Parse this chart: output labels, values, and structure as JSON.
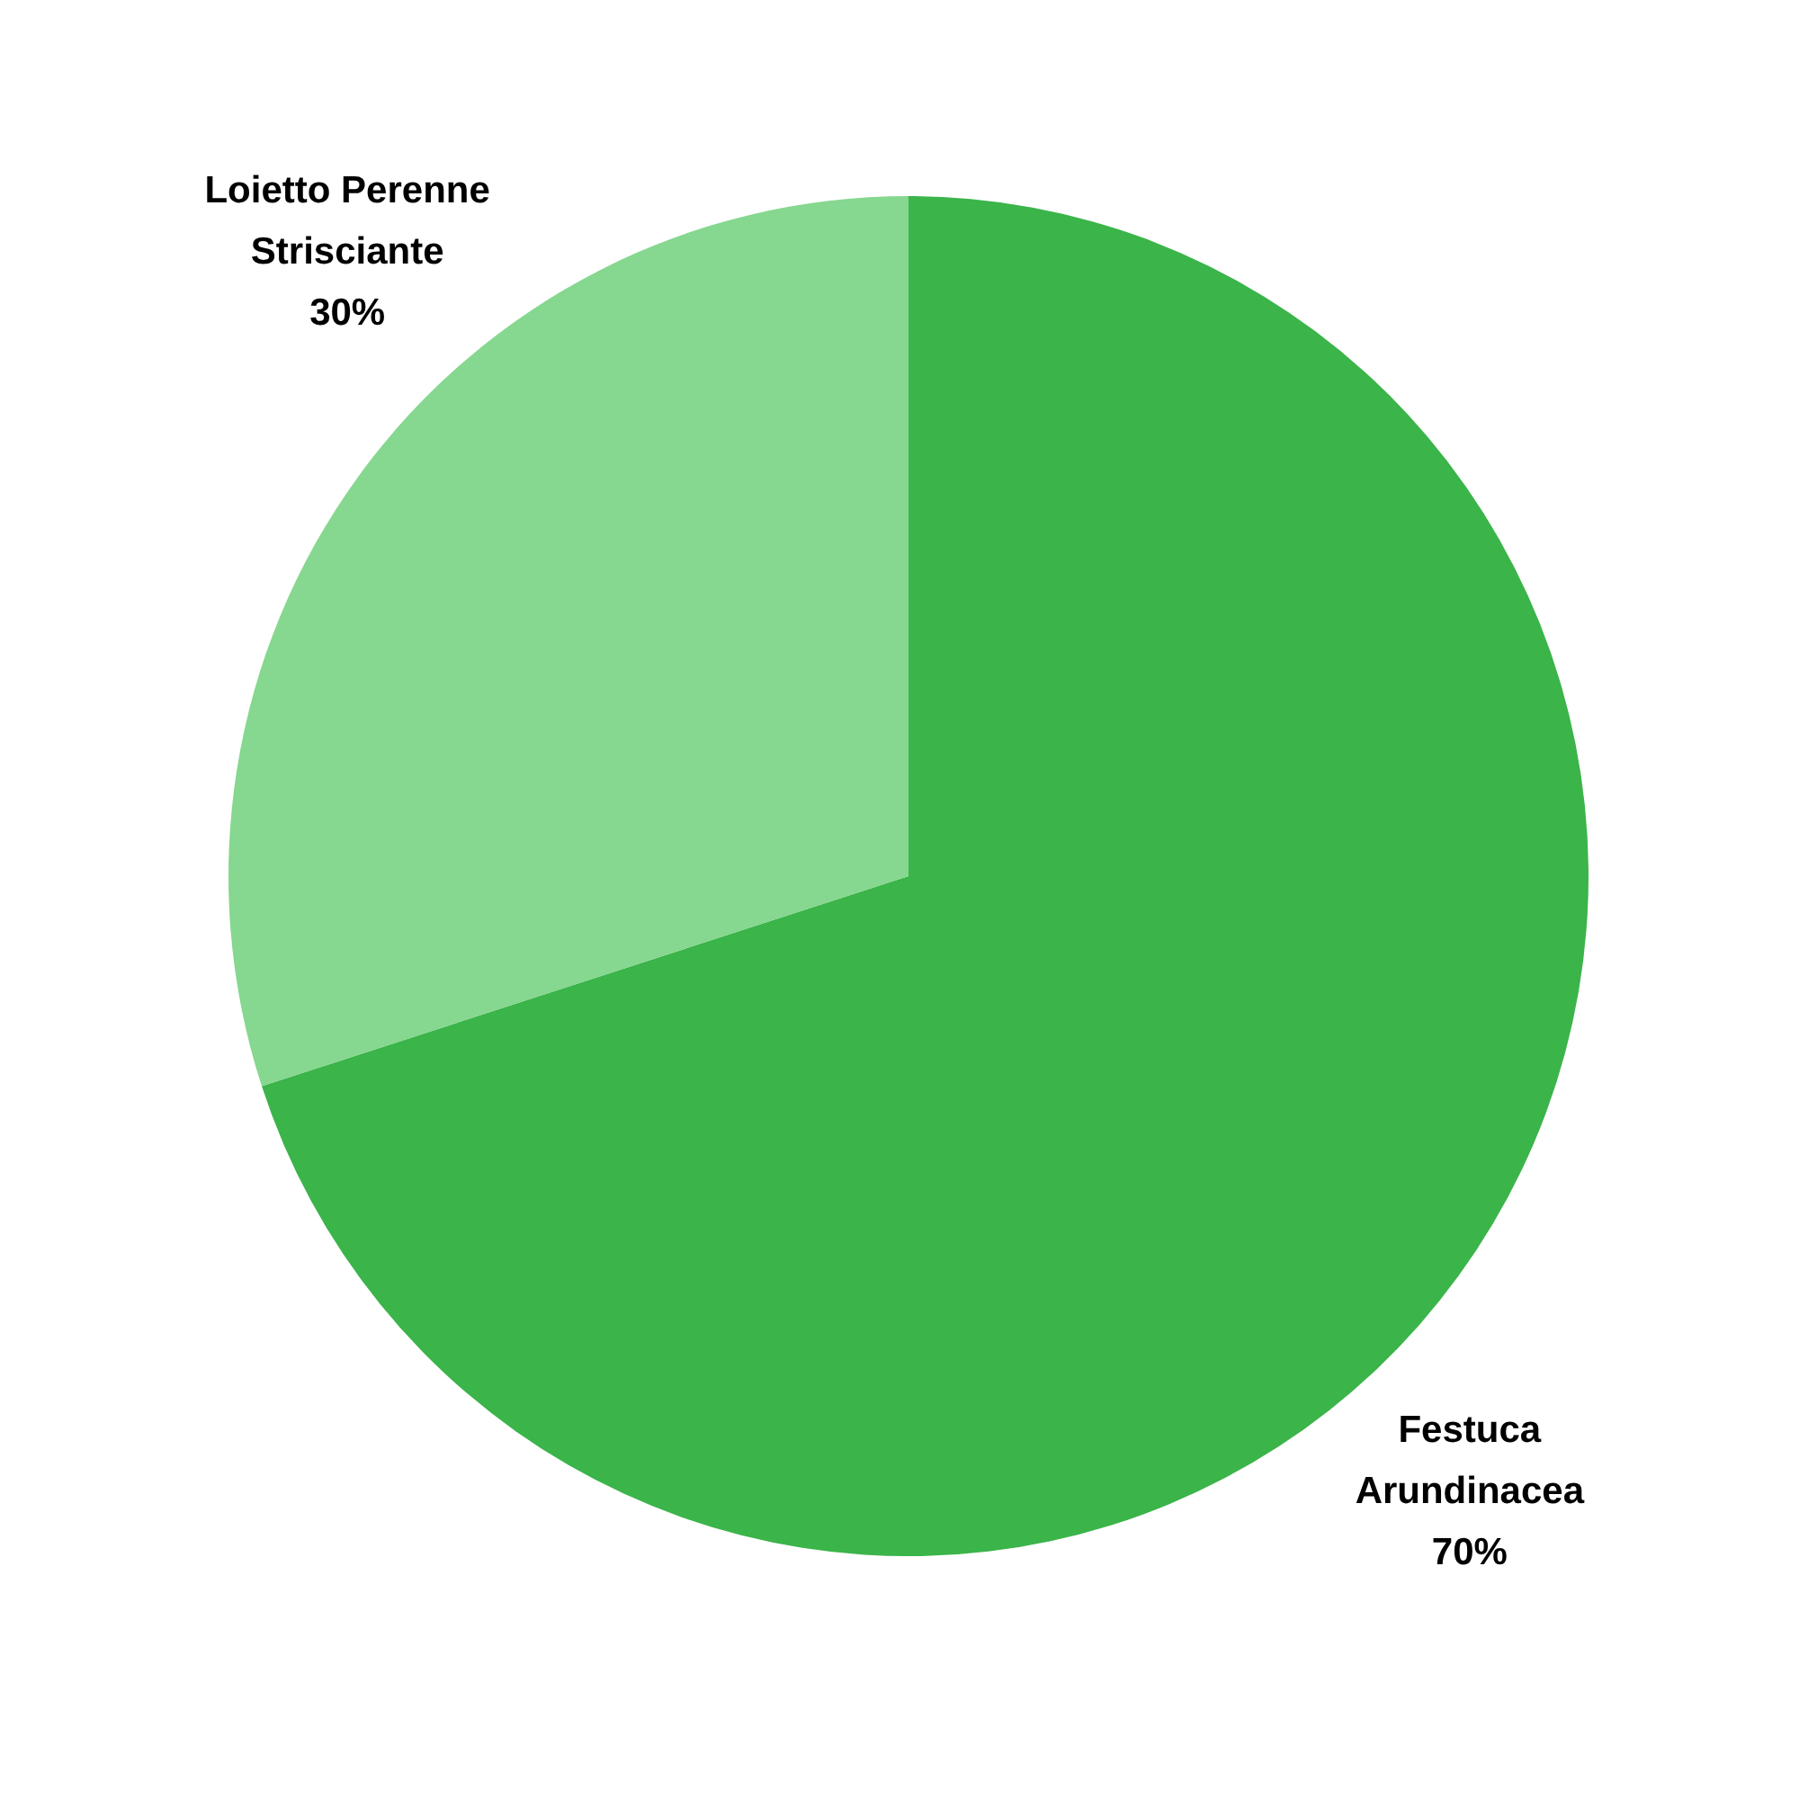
{
  "chart_data": {
    "type": "pie",
    "categories": [
      "Festuca Arundinacea",
      "Loietto Perenne Strisciante"
    ],
    "values": [
      70,
      30
    ],
    "colors": [
      "#3bb44a",
      "#86d78f"
    ],
    "value_labels": [
      "70%",
      "30%"
    ]
  }
}
